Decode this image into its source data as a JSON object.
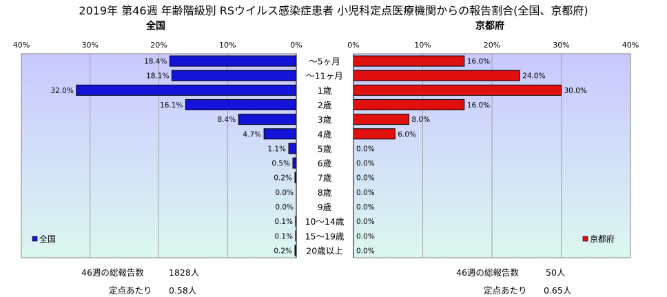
{
  "title": "2019年 第46週 年齢階級別 RSウイルス感染症患者 小児科定点医療機関からの報告割合(全国、京都府)",
  "colors": {
    "national_bar": "#1414d8",
    "kyoto_bar": "#e01010",
    "plot_bg_top": "#c8c8ff",
    "plot_bg_bottom": "#dcf7f0"
  },
  "chart_data": [
    {
      "type": "bar",
      "orientation": "horizontal",
      "direction": "right-to-left",
      "panel_title": "全国",
      "categories": [
        "～5ヶ月",
        "～11ヶ月",
        "1歳",
        "2歳",
        "3歳",
        "4歳",
        "5歳",
        "6歳",
        "7歳",
        "8歳",
        "9歳",
        "10～14歳",
        "15～19歳",
        "20歳以上"
      ],
      "series": [
        {
          "name": "全国",
          "values": [
            18.4,
            18.1,
            32.0,
            16.1,
            8.4,
            4.7,
            1.1,
            0.5,
            0.2,
            0.0,
            0.0,
            0.1,
            0.1,
            0.2
          ],
          "labels": [
            "18.4%",
            "18.1%",
            "32.0%",
            "16.1%",
            "8.4%",
            "4.7%",
            "1.1%",
            "0.5%",
            "0.2%",
            "0.0%",
            "0.0%",
            "0.1%",
            "0.1%",
            "0.2%"
          ]
        }
      ],
      "xlim": [
        0,
        40
      ],
      "ticks": [
        40,
        30,
        20,
        10,
        0
      ],
      "tick_labels": [
        "40%",
        "30%",
        "20%",
        "10%",
        "0%"
      ],
      "legend": "全国",
      "legend_position": "bottom-left",
      "grid": true,
      "footer": {
        "weekly_label": "46週の総報告数",
        "weekly_value": "1828人",
        "per_label": "定点あたり",
        "per_value": "0.58人"
      }
    },
    {
      "type": "bar",
      "orientation": "horizontal",
      "direction": "left-to-right",
      "panel_title": "京都府",
      "categories": [
        "～5ヶ月",
        "～11ヶ月",
        "1歳",
        "2歳",
        "3歳",
        "4歳",
        "5歳",
        "6歳",
        "7歳",
        "8歳",
        "9歳",
        "10～14歳",
        "15～19歳",
        "20歳以上"
      ],
      "series": [
        {
          "name": "京都府",
          "values": [
            16.0,
            24.0,
            30.0,
            16.0,
            8.0,
            6.0,
            0.0,
            0.0,
            0.0,
            0.0,
            0.0,
            0.0,
            0.0,
            0.0
          ],
          "labels": [
            "16.0%",
            "24.0%",
            "30.0%",
            "16.0%",
            "8.0%",
            "6.0%",
            "0.0%",
            "0.0%",
            "0.0%",
            "0.0%",
            "0.0%",
            "0.0%",
            "0.0%",
            "0.0%"
          ]
        }
      ],
      "xlim": [
        0,
        40
      ],
      "ticks": [
        0,
        10,
        20,
        30,
        40
      ],
      "tick_labels": [
        "0%",
        "10%",
        "20%",
        "30%",
        "40%"
      ],
      "legend": "京都府",
      "legend_position": "bottom-right",
      "grid": true,
      "footer": {
        "weekly_label": "46週の総報告数",
        "weekly_value": "50人",
        "per_label": "定点あたり",
        "per_value": "0.65人"
      }
    }
  ]
}
